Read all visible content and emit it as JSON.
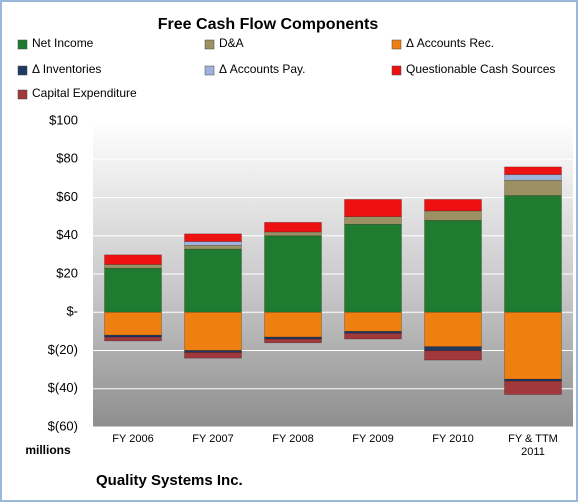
{
  "chart_data": {
    "type": "stacked-bar",
    "title": "Free Cash Flow Components",
    "y_unit_label": "millions",
    "footer": "Quality Systems Inc.",
    "categories": [
      "FY 2006",
      "FY 2007",
      "FY 2008",
      "FY 2009",
      "FY 2010",
      "FY & TTM 2011"
    ],
    "series": [
      {
        "name": "Net Income",
        "color": "#1e7b30",
        "values": [
          23,
          33,
          40,
          46,
          48,
          61
        ]
      },
      {
        "name": "D&A",
        "color": "#9b9163",
        "values": [
          2,
          2,
          2,
          4,
          5,
          8
        ]
      },
      {
        "name": "Δ Accounts Rec.",
        "color": "#f07f12",
        "values": [
          -12,
          -20,
          -13,
          -10,
          -18,
          -35
        ]
      },
      {
        "name": "Δ Inventories",
        "color": "#1f3864",
        "values": [
          -1,
          -1,
          -1,
          -1,
          -2,
          -1
        ]
      },
      {
        "name": "Δ Accounts Pay.",
        "color": "#9fb4dc",
        "values": [
          0,
          2,
          0,
          0,
          0,
          3
        ]
      },
      {
        "name": "Questionable Cash Sources",
        "color": "#ee1111",
        "values": [
          5,
          4,
          5,
          9,
          6,
          4
        ]
      },
      {
        "name": "Capital Expenditure",
        "color": "#a0383c",
        "values": [
          -2,
          -3,
          -2,
          -3,
          -5,
          -7
        ]
      }
    ],
    "ylim": [
      -60,
      100
    ],
    "yticks": [
      {
        "value": 100,
        "label": "$100"
      },
      {
        "value": 80,
        "label": "$80"
      },
      {
        "value": 60,
        "label": "$60"
      },
      {
        "value": 40,
        "label": "$40"
      },
      {
        "value": 20,
        "label": "$20"
      },
      {
        "value": 0,
        "label": "$-"
      },
      {
        "value": -20,
        "label": "$(20)"
      },
      {
        "value": -40,
        "label": "$(40)"
      },
      {
        "value": -60,
        "label": "$(60)"
      }
    ],
    "grid": true
  }
}
